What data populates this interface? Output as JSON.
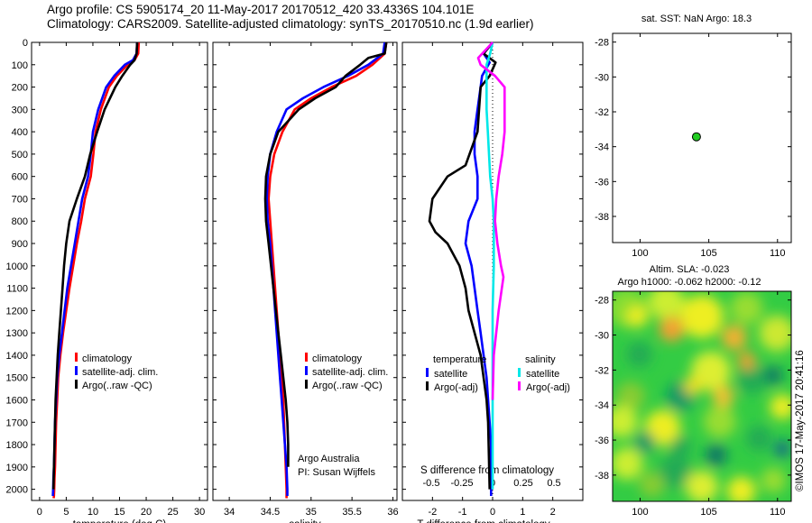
{
  "header": {
    "line1": "Argo profile: CS 5905174_20 11-May-2017 20170512_420 33.4336S 104.101E",
    "line2": "Climatology: CARS2009. Satellite-adjusted climatology: synTS_20170510.nc (1.9d earlier)"
  },
  "side_text": "©IMOS 17-May-2017 20:41:16",
  "colors": {
    "climatology": "#ff0000",
    "satellite": "#0000ff",
    "argo": "#000000",
    "sal_satellite": "#00e8e8",
    "sal_argo": "#ff00ff",
    "marker": "#22cc22"
  },
  "chart_data": [
    {
      "id": "temperature",
      "type": "line",
      "xlabel": "temperature (deg C)",
      "ylabel": "",
      "xlim": [
        -1.5,
        31.5
      ],
      "ylim": [
        2050,
        0
      ],
      "xticks": [
        0,
        5,
        10,
        15,
        20,
        25,
        30
      ],
      "xtick_labels": [
        "0",
        "5",
        "10",
        "15",
        "20",
        "25",
        "30"
      ],
      "yticks": [
        0,
        100,
        200,
        300,
        400,
        500,
        600,
        700,
        800,
        900,
        1000,
        1100,
        1200,
        1300,
        1400,
        1500,
        1600,
        1700,
        1800,
        1900,
        2000
      ],
      "ytick_labels": [
        "0",
        "100",
        "200",
        "300",
        "400",
        "500",
        "600",
        "700",
        "800",
        "900",
        "1000",
        "1100",
        "1200",
        "1300",
        "1400",
        "1500",
        "1600",
        "1700",
        "1800",
        "1900",
        "2000"
      ],
      "legend": [
        "climatology",
        "satellite-adj. clim.",
        "Argo(..raw -QC)"
      ],
      "series": [
        {
          "name": "climatology",
          "color": "#ff0000",
          "x": [
            18.6,
            18.5,
            17.8,
            16.5,
            14.5,
            13,
            11.5,
            10.5,
            10.1,
            9.6,
            8.5,
            7.8,
            7,
            6.3,
            5.6,
            5,
            4.4,
            3.9,
            3.5,
            3.3,
            3.1,
            3,
            2.9,
            2.8,
            2.75,
            2.7,
            2.65
          ],
          "y": [
            0,
            50,
            80,
            100,
            150,
            200,
            300,
            400,
            500,
            600,
            700,
            800,
            900,
            1000,
            1100,
            1200,
            1300,
            1400,
            1500,
            1600,
            1700,
            1800,
            1900,
            1950,
            2000,
            2030,
            2040
          ]
        },
        {
          "name": "satellite-adj. clim.",
          "color": "#0000ff",
          "x": [
            18.3,
            18.2,
            17.5,
            16,
            14,
            12.5,
            11,
            10,
            9.6,
            9.1,
            8,
            7.3,
            6.6,
            5.9,
            5.2,
            4.7,
            4.2,
            3.7,
            3.3,
            3.1,
            2.9,
            2.8,
            2.7,
            2.6,
            2.55,
            2.5
          ],
          "y": [
            0,
            50,
            80,
            100,
            150,
            200,
            300,
            400,
            500,
            600,
            700,
            800,
            900,
            1000,
            1100,
            1200,
            1300,
            1400,
            1500,
            1600,
            1700,
            1800,
            1900,
            1950,
            2000,
            2030
          ]
        },
        {
          "name": "Argo(..raw -QC)",
          "color": "#000000",
          "x": [
            18.3,
            18.2,
            17.8,
            17,
            15.5,
            14.2,
            12.2,
            10.8,
            9.5,
            8.5,
            7,
            5.6,
            5,
            4.6,
            4.3,
            4,
            3.7,
            3.4,
            3.2,
            3,
            2.9,
            2.8,
            2.7,
            2.65,
            2.6
          ],
          "y": [
            0,
            50,
            80,
            100,
            150,
            200,
            300,
            400,
            500,
            600,
            700,
            800,
            900,
            1000,
            1100,
            1200,
            1300,
            1400,
            1500,
            1600,
            1700,
            1800,
            1900,
            1950,
            2000
          ]
        }
      ],
      "annotations": []
    },
    {
      "id": "salinity",
      "type": "line",
      "xlabel": "salinity",
      "ylabel": "",
      "xlim": [
        33.8,
        36.05
      ],
      "ylim": [
        2050,
        0
      ],
      "xticks": [
        34,
        34.5,
        35,
        35.5,
        36
      ],
      "xtick_labels": [
        "34",
        "34.5",
        "35",
        "35.5",
        "36"
      ],
      "yticks": [
        0,
        100,
        200,
        300,
        400,
        500,
        600,
        700,
        800,
        900,
        1000,
        1100,
        1200,
        1300,
        1400,
        1500,
        1600,
        1700,
        1800,
        1900,
        2000
      ],
      "ytick_labels": [],
      "legend": [
        "climatology",
        "satellite-adj. clim.",
        "Argo(..raw -QC)"
      ],
      "series": [
        {
          "name": "climatology",
          "color": "#ff0000",
          "x": [
            35.92,
            35.9,
            35.75,
            35.55,
            35.25,
            35,
            34.8,
            34.65,
            34.55,
            34.5,
            34.48,
            34.5,
            34.52,
            34.54,
            34.56,
            34.58,
            34.6,
            34.62,
            34.64,
            34.66,
            34.67,
            34.68,
            34.69,
            34.7,
            34.7
          ],
          "y": [
            0,
            50,
            100,
            150,
            200,
            250,
            300,
            400,
            500,
            600,
            700,
            800,
            900,
            1000,
            1100,
            1200,
            1300,
            1400,
            1500,
            1600,
            1700,
            1800,
            1900,
            2000,
            2040
          ]
        },
        {
          "name": "satellite-adj. clim.",
          "color": "#0000ff",
          "x": [
            35.9,
            35.88,
            35.7,
            35.45,
            35.15,
            34.9,
            34.7,
            34.58,
            34.5,
            34.47,
            34.46,
            34.47,
            34.5,
            34.52,
            34.54,
            34.56,
            34.58,
            34.6,
            34.62,
            34.64,
            34.66,
            34.68,
            34.7,
            34.71,
            34.71
          ],
          "y": [
            0,
            50,
            100,
            150,
            200,
            250,
            300,
            400,
            500,
            600,
            700,
            800,
            900,
            1000,
            1100,
            1200,
            1300,
            1400,
            1500,
            1600,
            1700,
            1800,
            1900,
            2000,
            2030
          ]
        },
        {
          "name": "Argo(..raw -QC)",
          "color": "#000000",
          "x": [
            35.92,
            35.9,
            35.7,
            35.6,
            35.42,
            35.3,
            35.05,
            34.85,
            34.6,
            34.5,
            34.45,
            34.44,
            34.45,
            34.48,
            34.51,
            34.54,
            34.57,
            34.6,
            34.63,
            34.66,
            34.69,
            34.71,
            34.72,
            34.72
          ],
          "y": [
            0,
            50,
            70,
            100,
            150,
            200,
            250,
            300,
            400,
            500,
            600,
            700,
            800,
            900,
            1000,
            1100,
            1200,
            1300,
            1400,
            1500,
            1600,
            1700,
            1800,
            1900
          ]
        }
      ],
      "annotations": [
        "Argo Australia",
        "PI: Susan Wijffels"
      ]
    },
    {
      "id": "difference",
      "type": "line",
      "xlabel": "T difference from climatology",
      "secondary_xlabel": "S difference from climatology",
      "xlim": [
        -3.0,
        3.0
      ],
      "ylim": [
        2050,
        0
      ],
      "xticks": [
        -2,
        -1,
        0,
        1,
        2
      ],
      "xtick_labels": [
        "-2",
        "-1",
        "0",
        "1",
        "2"
      ],
      "secondary_xticks": [
        -0.5,
        -0.25,
        0,
        0.25,
        0.5
      ],
      "secondary_xtick_labels": [
        "-0.5",
        "-0.25",
        "0",
        "0.25",
        "0.5"
      ],
      "yticks": [
        0,
        100,
        200,
        300,
        400,
        500,
        600,
        700,
        800,
        900,
        1000,
        1100,
        1200,
        1300,
        1400,
        1500,
        1600,
        1700,
        1800,
        1900,
        2000
      ],
      "ytick_labels": [],
      "legend_groups": [
        "temperature",
        "salinity"
      ],
      "legend": [
        "satellite",
        "Argo(-adj)",
        "satellite",
        "Argo(-adj)"
      ],
      "series": [
        {
          "name": "satellite",
          "group": "temperature",
          "color": "#0000ff",
          "x": [
            0,
            -0.3,
            -0.1,
            -0.35,
            -0.4,
            -0.5,
            -0.6,
            -0.6,
            -0.5,
            -0.5,
            -0.8,
            -0.9,
            -0.7,
            -0.6,
            -0.5,
            -0.4,
            -0.3,
            -0.2,
            -0.15,
            -0.1,
            -0.05,
            -0.05
          ],
          "y": [
            0,
            50,
            90,
            150,
            200,
            300,
            400,
            500,
            600,
            700,
            800,
            900,
            1000,
            1100,
            1200,
            1300,
            1400,
            1500,
            1600,
            1700,
            1800,
            2030
          ]
        },
        {
          "name": "Argo(-adj)",
          "group": "temperature",
          "color": "#000000",
          "x": [
            0,
            -0.3,
            0.1,
            -0.1,
            -0.4,
            -0.5,
            -0.9,
            -1.5,
            -2.0,
            -2.1,
            -1.9,
            -1.5,
            -1.1,
            -0.9,
            -0.8,
            -0.6,
            -0.4,
            -0.3,
            -0.2,
            -0.15,
            -0.1
          ],
          "y": [
            0,
            50,
            90,
            150,
            200,
            400,
            550,
            600,
            700,
            800,
            850,
            900,
            1000,
            1100,
            1200,
            1300,
            1400,
            1500,
            1600,
            1700,
            2000
          ]
        },
        {
          "name": "satellite",
          "group": "salinity",
          "color": "#00e8e8",
          "x": [
            0,
            -0.02,
            -0.05,
            -0.05,
            -0.05,
            -0.04,
            -0.03,
            -0.02,
            0,
            0.01,
            0.01,
            0.01,
            0,
            0
          ],
          "y": [
            0,
            50,
            100,
            200,
            300,
            400,
            500,
            600,
            700,
            800,
            900,
            1000,
            1200,
            2000
          ]
        },
        {
          "name": "Argo(-adj)",
          "group": "salinity",
          "color": "#ff00ff",
          "x": [
            0,
            -0.12,
            -0.1,
            0.02,
            0.1,
            0.1,
            0.08,
            0.05,
            0.03,
            0.02,
            0.04,
            0.07,
            0.09,
            0.05,
            0.01,
            0
          ],
          "y": [
            0,
            70,
            100,
            150,
            200,
            400,
            500,
            600,
            700,
            800,
            900,
            1000,
            1050,
            1200,
            1400,
            1600
          ]
        }
      ],
      "annotations": []
    },
    {
      "id": "location",
      "type": "scatter",
      "title": "sat. SST: NaN Argo: 18.3",
      "xlim": [
        98,
        111
      ],
      "ylim": [
        -39.5,
        -27.5
      ],
      "xticks": [
        100,
        105,
        110
      ],
      "xtick_labels": [
        "100",
        "105",
        "110"
      ],
      "yticks": [
        -28,
        -30,
        -32,
        -34,
        -36,
        -38
      ],
      "ytick_labels": [
        "-28",
        "-30",
        "-32",
        "-34",
        "-36",
        "-38"
      ],
      "points": [
        {
          "x": 104.101,
          "y": -33.4336
        }
      ]
    },
    {
      "id": "sla_map",
      "type": "heatmap",
      "title_line1": "Altim. SLA: -0.023",
      "title_line2": "Argo h1000: -0.062 h2000: -0.12",
      "xlim": [
        98,
        111
      ],
      "ylim": [
        -39.5,
        -27.5
      ],
      "xticks": [
        100,
        105,
        110
      ],
      "xtick_labels": [
        "100",
        "105",
        "110"
      ],
      "yticks": [
        -28,
        -30,
        -32,
        -34,
        -36,
        -38
      ],
      "ytick_labels": [
        "-28",
        "-30",
        "-32",
        "-34",
        "-36",
        "-38"
      ]
    }
  ]
}
